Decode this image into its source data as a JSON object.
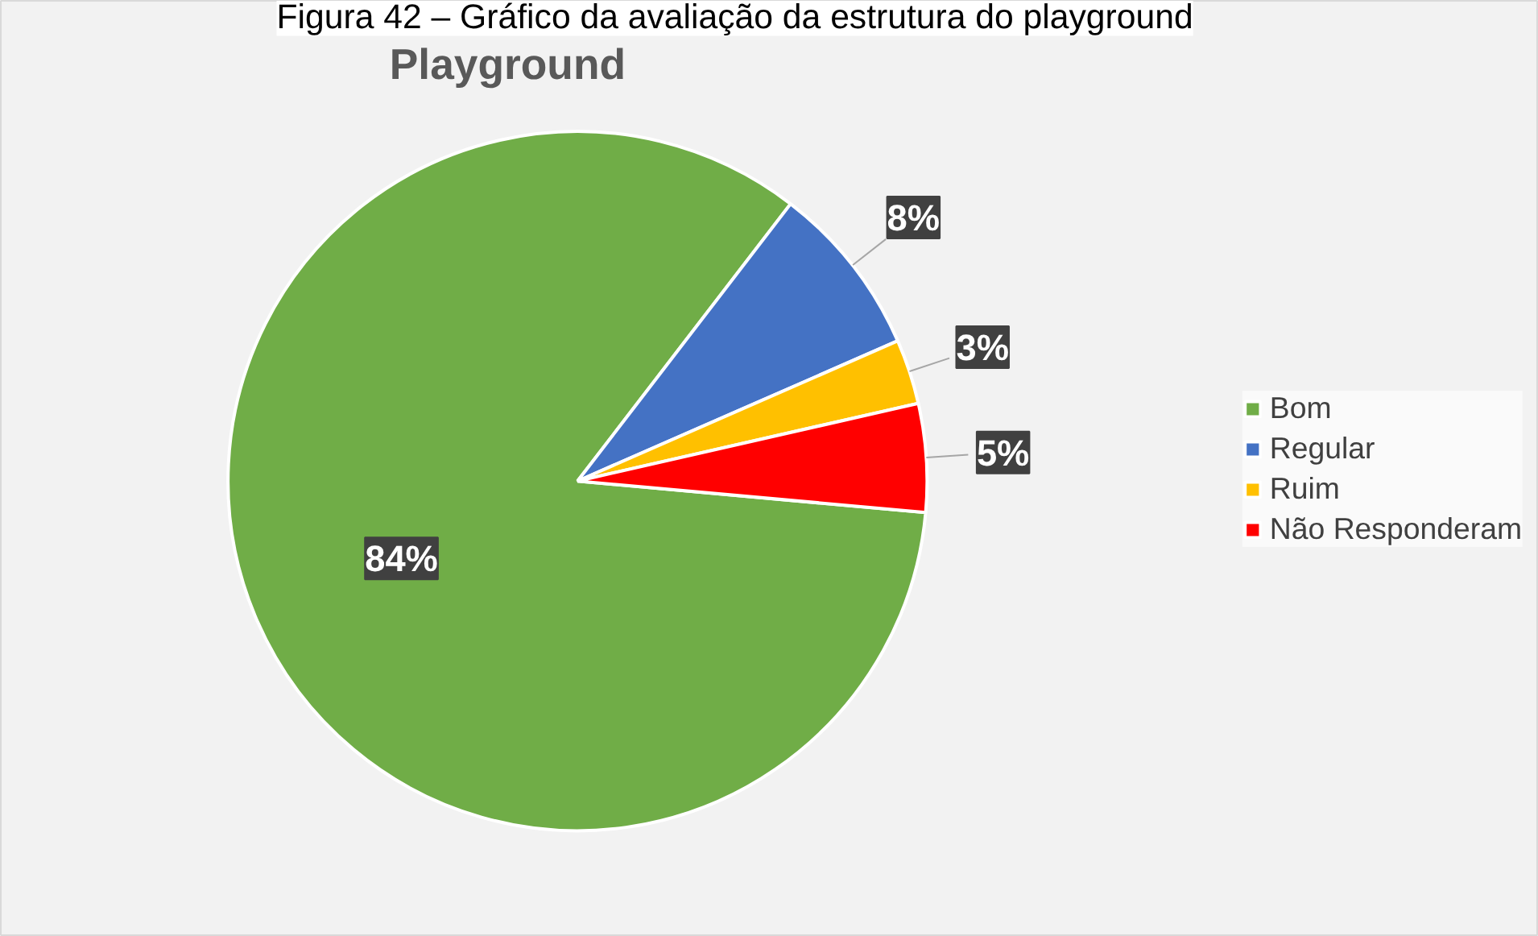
{
  "chart_data": {
    "type": "pie",
    "title": "Playground",
    "annotations": [
      "Figura 42 – Gráfico da avaliação da estrutura do playground"
    ],
    "categories": [
      "Bom",
      "Regular",
      "Ruim",
      "Não Responderam"
    ],
    "values": [
      84,
      8,
      3,
      5
    ],
    "colors": [
      "#70ad47",
      "#4472c4",
      "#ffc000",
      "#ff0000"
    ],
    "value_labels": [
      "84%",
      "8%",
      "3%",
      "5%"
    ],
    "legend": "right"
  }
}
